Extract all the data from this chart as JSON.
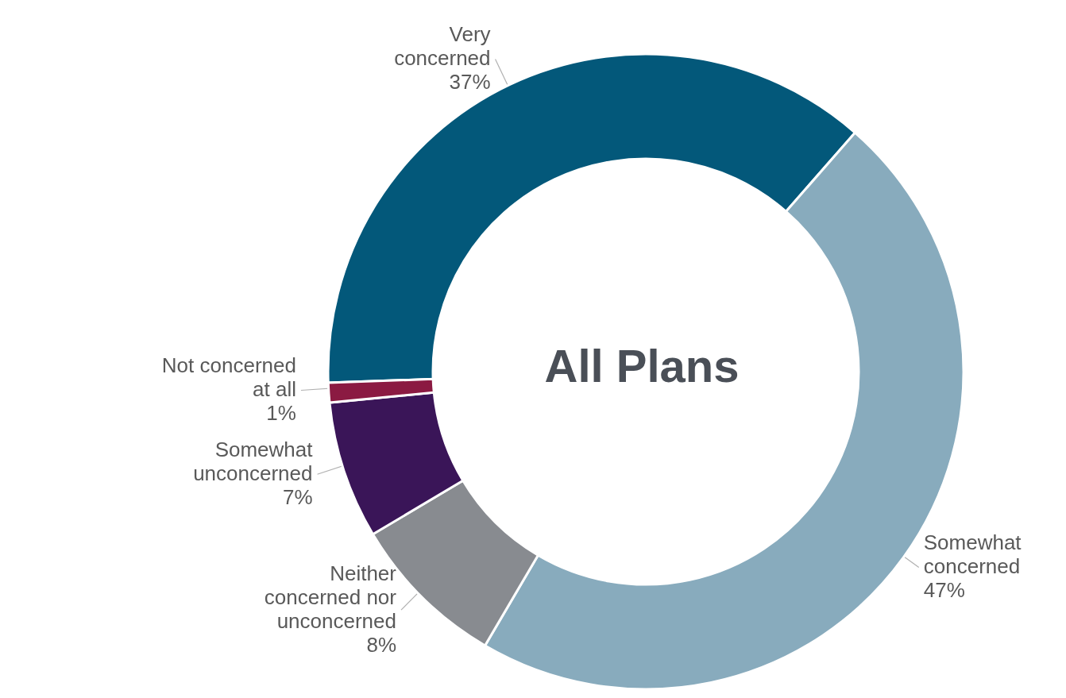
{
  "chart_data": {
    "type": "donut",
    "title": "All Plans",
    "categories": [
      "Very concerned",
      "Somewhat concerned",
      "Neither concerned nor unconcerned",
      "Somewhat unconcerned",
      "Not concerned at all"
    ],
    "values": [
      37,
      47,
      8,
      7,
      1
    ],
    "colors": [
      "#03587a",
      "#88abbd",
      "#888b90",
      "#3a1558",
      "#8b1a42"
    ],
    "value_labels": [
      "37%",
      "47%",
      "8%",
      "7%",
      "1%"
    ],
    "legend": false
  }
}
